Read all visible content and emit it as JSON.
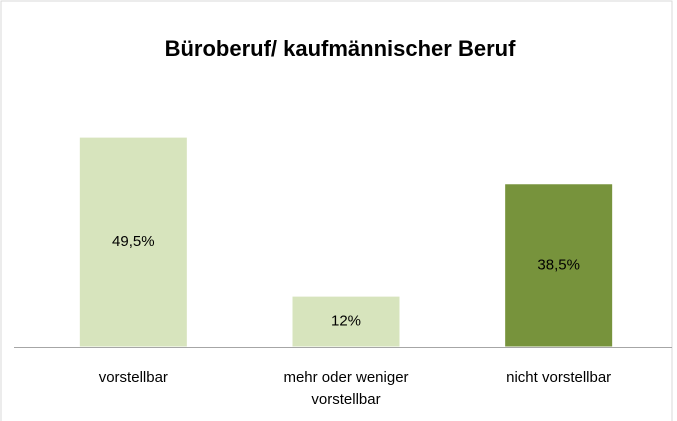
{
  "chart_data": {
    "type": "bar",
    "title": "Büroberuf/ kaufmännischer Beruf",
    "categories": [
      "vorstellbar",
      "mehr oder weniger vorstellbar",
      "nicht vorstellbar"
    ],
    "values": [
      49.5,
      12,
      38.5
    ],
    "value_labels": [
      "49,5%",
      "12%",
      "38,5%"
    ],
    "colors": [
      "#d7e4bd",
      "#d7e4bd",
      "#77933c"
    ]
  }
}
